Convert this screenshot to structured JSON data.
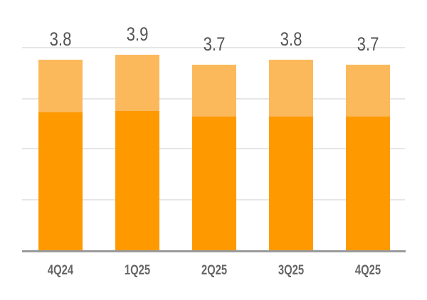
{
  "chart_data": {
    "type": "bar",
    "stacked": true,
    "title": "",
    "xlabel": "",
    "ylabel": "",
    "ylim": [
      0,
      4
    ],
    "grid": true,
    "legend": null,
    "categories": [
      "4Q24",
      "1Q25",
      "2Q25",
      "3Q25",
      "4Q25"
    ],
    "series": [
      {
        "name": "lower segment",
        "color": "#FF9900",
        "values": [
          2.75,
          2.78,
          2.67,
          2.67,
          2.67
        ]
      },
      {
        "name": "upper segment",
        "color": "#FBB95C",
        "values": [
          1.05,
          1.12,
          1.03,
          1.13,
          1.03
        ]
      }
    ],
    "totals": [
      3.8,
      3.9,
      3.7,
      3.8,
      3.7
    ],
    "total_labels": [
      "3.8",
      "3.9",
      "3.7",
      "3.8",
      "3.7"
    ]
  },
  "colors": {
    "dark_bar": "#FF9900",
    "light_bar": "#FBB95C",
    "grid": "#E6E6E6",
    "axis": "#9A9A9A",
    "label_text": "#555555"
  }
}
